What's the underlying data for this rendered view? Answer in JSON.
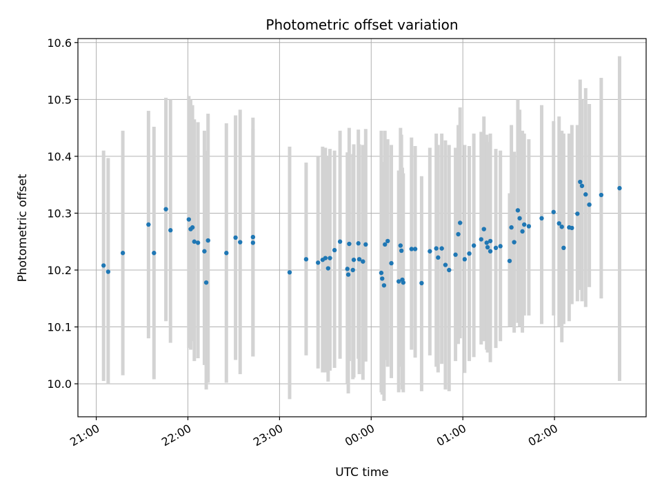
{
  "chart_data": {
    "type": "scatter",
    "title": "Photometric offset variation",
    "xlabel": "UTC time",
    "ylabel": "Photometric offset",
    "x_tick_labels": [
      "21:00",
      "22:00",
      "23:00",
      "00:00",
      "01:00",
      "02:00"
    ],
    "y_tick_labels": [
      "10.0",
      "10.1",
      "10.2",
      "10.3",
      "10.4",
      "10.5",
      "10.6"
    ],
    "x_ticks_hours": [
      21,
      22,
      23,
      24,
      25,
      26
    ],
    "y_ticks": [
      10.0,
      10.1,
      10.2,
      10.3,
      10.4,
      10.5,
      10.6
    ],
    "xlim_hours": [
      20.8,
      27.0
    ],
    "ylim": [
      9.942,
      10.607
    ],
    "grid": true,
    "colors": {
      "points": "#1f77b4",
      "errorbars": "#d3d3d3",
      "grid": "#b0b0b0"
    },
    "series": [
      {
        "x_hours": [
          21.08,
          21.13,
          21.29,
          21.57,
          21.63,
          21.76,
          21.81,
          22.01,
          22.03,
          22.05,
          22.07,
          22.11,
          22.18,
          22.2,
          22.22,
          22.42,
          22.52,
          22.57,
          22.71,
          22.71,
          23.11,
          23.29,
          23.42,
          23.47,
          23.5,
          23.53,
          23.55,
          23.6,
          23.66,
          23.74,
          23.75,
          23.76,
          23.8,
          23.81,
          23.86,
          23.87,
          23.91,
          23.94,
          24.11,
          24.12,
          24.14,
          24.15,
          24.18,
          24.22,
          24.3,
          24.32,
          24.33,
          24.34,
          24.35,
          24.44,
          24.48,
          24.55,
          24.64,
          24.71,
          24.73,
          24.77,
          24.81,
          24.85,
          24.92,
          24.95,
          24.97,
          25.02,
          25.07,
          25.12,
          25.2,
          25.23,
          25.26,
          25.27,
          25.3,
          25.3,
          25.36,
          25.41,
          25.51,
          25.53,
          25.56,
          25.6,
          25.62,
          25.65,
          25.67,
          25.72,
          25.86,
          25.99,
          26.05,
          26.08,
          26.1,
          26.16,
          26.19,
          26.25,
          26.28,
          26.3,
          26.34,
          26.38,
          26.51,
          26.71
        ],
        "y": [
          10.208,
          10.197,
          10.23,
          10.28,
          10.23,
          10.307,
          10.27,
          10.289,
          10.272,
          10.275,
          10.25,
          10.248,
          10.233,
          10.178,
          10.252,
          10.23,
          10.257,
          10.249,
          10.248,
          10.258,
          10.196,
          10.219,
          10.213,
          10.218,
          10.221,
          10.203,
          10.221,
          10.235,
          10.25,
          10.202,
          10.192,
          10.246,
          10.2,
          10.218,
          10.247,
          10.219,
          10.215,
          10.245,
          10.195,
          10.185,
          10.173,
          10.245,
          10.251,
          10.212,
          10.18,
          10.243,
          10.234,
          10.183,
          10.178,
          10.237,
          10.237,
          10.177,
          10.233,
          10.238,
          10.222,
          10.238,
          10.209,
          10.2,
          10.227,
          10.263,
          10.283,
          10.219,
          10.229,
          10.243,
          10.254,
          10.272,
          10.248,
          10.24,
          10.233,
          10.251,
          10.239,
          10.242,
          10.216,
          10.275,
          10.249,
          10.305,
          10.291,
          10.268,
          10.28,
          10.277,
          10.291,
          10.302,
          10.282,
          10.276,
          10.239,
          10.275,
          10.274,
          10.299,
          10.355,
          10.348,
          10.333,
          10.315,
          10.332,
          10.344
        ],
        "y_low": [
          10.005,
          10.0,
          10.015,
          10.08,
          10.008,
          10.11,
          10.072,
          10.063,
          10.06,
          10.075,
          10.04,
          10.045,
          10.033,
          9.99,
          10.002,
          10.002,
          10.042,
          10.017,
          10.048,
          10.048,
          9.973,
          10.05,
          10.027,
          10.02,
          10.02,
          10.004,
          10.023,
          10.028,
          10.044,
          10.0,
          9.983,
          10.04,
          10.008,
          10.011,
          10.044,
          10.017,
          10.007,
          10.039,
          9.985,
          9.981,
          9.97,
          10.042,
          10.03,
          10.01,
          9.985,
          10.035,
          10.03,
          9.99,
          9.985,
          10.06,
          10.046,
          9.987,
          10.05,
          10.03,
          10.02,
          10.035,
          9.99,
          9.987,
          10.04,
          10.07,
          10.08,
          10.019,
          10.04,
          10.047,
          10.069,
          10.075,
          10.06,
          10.055,
          10.038,
          10.063,
          10.063,
          10.075,
          10.1,
          10.1,
          10.09,
          10.107,
          10.1,
          10.09,
          10.12,
          10.12,
          10.105,
          10.12,
          10.1,
          10.073,
          10.105,
          10.11,
          10.14,
          10.145,
          10.165,
          10.145,
          10.135,
          10.17,
          10.15,
          10.005
        ],
        "y_high": [
          10.41,
          10.397,
          10.445,
          10.48,
          10.452,
          10.503,
          10.5,
          10.506,
          10.5,
          10.49,
          10.465,
          10.46,
          10.445,
          10.41,
          10.475,
          10.458,
          10.472,
          10.482,
          10.448,
          10.468,
          10.417,
          10.389,
          10.4,
          10.417,
          10.415,
          10.4,
          10.413,
          10.41,
          10.445,
          10.407,
          10.4,
          10.45,
          10.404,
          10.421,
          10.447,
          10.421,
          10.42,
          10.448,
          10.445,
          10.39,
          10.38,
          10.445,
          10.43,
          10.42,
          10.375,
          10.45,
          10.438,
          10.38,
          10.37,
          10.433,
          10.418,
          10.365,
          10.415,
          10.44,
          10.42,
          10.44,
          10.428,
          10.42,
          10.415,
          10.455,
          10.486,
          10.42,
          10.418,
          10.44,
          10.443,
          10.47,
          10.438,
          10.425,
          10.428,
          10.44,
          10.413,
          10.41,
          10.335,
          10.455,
          10.408,
          10.5,
          10.482,
          10.445,
          10.44,
          10.43,
          10.49,
          10.462,
          10.47,
          10.445,
          10.44,
          10.44,
          10.455,
          10.455,
          10.535,
          10.5,
          10.52,
          10.492,
          10.538,
          10.576
        ]
      }
    ]
  }
}
